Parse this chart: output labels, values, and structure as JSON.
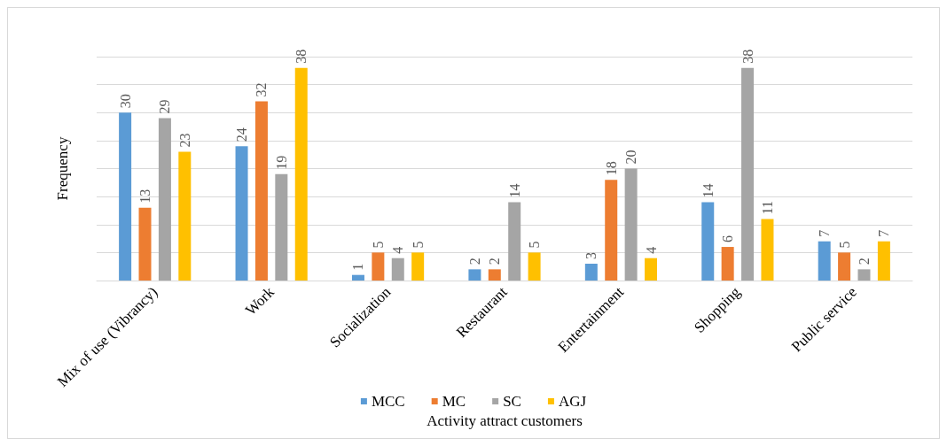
{
  "chart_data": {
    "type": "bar",
    "xlabel": "Activity attract customers",
    "ylabel": "Frequency",
    "categories": [
      "Mix of use (Vibrancy)",
      "Work",
      "Socialization",
      "Restaurant",
      "Entertainment",
      "Shopping",
      "Public service"
    ],
    "series": [
      {
        "name": "MCC",
        "color": "#5b9bd5",
        "values": [
          30,
          24,
          1,
          2,
          3,
          14,
          7
        ]
      },
      {
        "name": "MC",
        "color": "#ed7d31",
        "values": [
          13,
          32,
          5,
          2,
          18,
          6,
          5
        ]
      },
      {
        "name": "SC",
        "color": "#a5a5a5",
        "values": [
          29,
          19,
          4,
          14,
          20,
          38,
          2
        ]
      },
      {
        "name": "AGJ",
        "color": "#ffc000",
        "values": [
          23,
          38,
          5,
          5,
          4,
          11,
          7
        ]
      }
    ],
    "ylim": [
      0,
      40
    ],
    "yticks": [
      {
        "value": 0,
        "label": null
      },
      {
        "value": 5,
        "label": null
      },
      {
        "value": 10,
        "label": null
      },
      {
        "value": 15,
        "label": null
      },
      {
        "value": 20,
        "label": null
      },
      {
        "value": 25,
        "label": null
      },
      {
        "value": 30,
        "label": null
      },
      {
        "value": 35,
        "label": null
      },
      {
        "value": 40,
        "label": null
      }
    ],
    "tick_labels": "x",
    "grid": "y",
    "legend": "bottom",
    "data_labels": true
  }
}
